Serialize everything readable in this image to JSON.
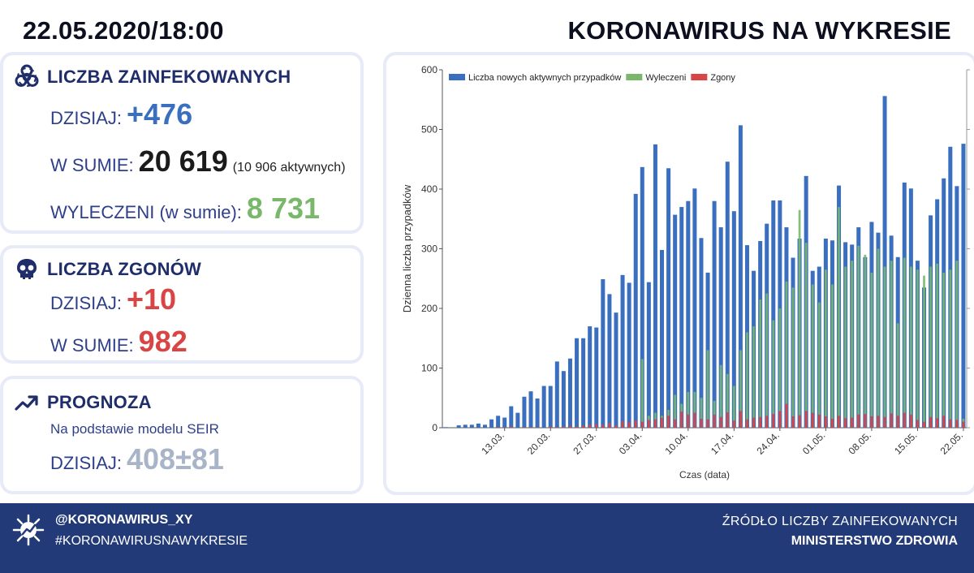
{
  "header": {
    "datetime": "22.05.2020/18:00",
    "title": "KORONAWIRUS NA WYKRESIE"
  },
  "infected": {
    "title": "LICZBA ZAINFEKOWANYCH",
    "today_label": "DZISIAJ:",
    "today_value": "+476",
    "total_label": "W SUMIE:",
    "total_value": "20 619",
    "active_note": "(10 906 aktywnych)",
    "recovered_label": "WYLECZENI (w sumie):",
    "recovered_value": "8 731"
  },
  "deaths": {
    "title": "LICZBA ZGONÓW",
    "today_label": "DZISIAJ:",
    "today_value": "+10",
    "total_label": "W SUMIE:",
    "total_value": "982"
  },
  "forecast": {
    "title": "PROGNOZA",
    "subtitle": "Na podstawie modelu SEIR",
    "today_label": "DZISIAJ:",
    "today_value": "408±81"
  },
  "footer": {
    "handle": "@KORONAWIRUS_XY",
    "hashtag": "#KORONAWIRUSNAWYKRESIE",
    "source_line1": "ŹRÓDŁO LICZBY ZAINFEKOWANYCH",
    "source_line2": "MINISTERSTWO ZDROWIA"
  },
  "colors": {
    "accent_blue": "#3a6fc0",
    "recovered_green": "#79b86a",
    "deaths_red": "#d94545",
    "footer_navy": "#233a79"
  },
  "icons": [
    "biohazard-icon",
    "skull-icon",
    "trend-up-icon",
    "virus-logo-icon"
  ],
  "chart_data": {
    "type": "bar",
    "xlabel": "Czas (data)",
    "ylabel": "Dzienna liczba przypadków",
    "ylim": [
      0,
      600
    ],
    "yticks": [
      0,
      100,
      200,
      300,
      400,
      500,
      600
    ],
    "xlim": [
      "2020-03-04",
      "2020-05-22"
    ],
    "xticks": [
      "13.03.",
      "20.03.",
      "27.03.",
      "03.04.",
      "10.04.",
      "17.04.",
      "24.04.",
      "01.05.",
      "08.05.",
      "15.05.",
      "22.05."
    ],
    "grid": false,
    "legend_position": "top-left",
    "x": [
      "04.03",
      "05.03",
      "06.03",
      "07.03",
      "08.03",
      "09.03",
      "10.03",
      "11.03",
      "12.03",
      "13.03",
      "14.03",
      "15.03",
      "16.03",
      "17.03",
      "18.03",
      "19.03",
      "20.03",
      "21.03",
      "22.03",
      "23.03",
      "24.03",
      "25.03",
      "26.03",
      "27.03",
      "28.03",
      "29.03",
      "30.03",
      "31.03",
      "01.04",
      "02.04",
      "03.04",
      "04.04",
      "05.04",
      "06.04",
      "07.04",
      "08.04",
      "09.04",
      "10.04",
      "11.04",
      "12.04",
      "13.04",
      "14.04",
      "15.04",
      "16.04",
      "17.04",
      "18.04",
      "19.04",
      "20.04",
      "21.04",
      "22.04",
      "23.04",
      "24.04",
      "25.04",
      "26.04",
      "27.04",
      "28.04",
      "29.04",
      "30.04",
      "01.05",
      "02.05",
      "03.05",
      "04.05",
      "05.05",
      "06.05",
      "07.05",
      "08.05",
      "09.05",
      "10.05",
      "11.05",
      "12.05",
      "13.05",
      "14.05",
      "15.05",
      "16.05",
      "17.05",
      "18.05",
      "19.05",
      "20.05",
      "21.05",
      "22.05"
    ],
    "series": [
      {
        "name": "Liczba nowych aktywnych przypadków",
        "color": "#3a6fc0",
        "values": [
          1,
          0,
          4,
          5,
          5,
          7,
          5,
          14,
          20,
          17,
          36,
          25,
          52,
          61,
          49,
          70,
          70,
          111,
          95,
          116,
          150,
          150,
          170,
          168,
          249,
          224,
          193,
          256,
          243,
          392,
          437,
          244,
          475,
          298,
          435,
          357,
          370,
          380,
          401,
          318,
          260,
          380,
          336,
          446,
          363,
          507,
          306,
          263,
          313,
          342,
          381,
          381,
          336,
          285,
          317,
          422,
          263,
          270,
          317,
          314,
          406,
          311,
          307,
          336,
          286,
          345,
          327,
          556,
          322,
          286,
          411,
          401,
          280,
          235,
          356,
          383,
          418,
          471,
          405,
          476
        ]
      },
      {
        "name": "Wyleczeni",
        "color": "#79b86a",
        "values": [
          0,
          0,
          0,
          0,
          0,
          0,
          0,
          0,
          0,
          0,
          0,
          0,
          0,
          0,
          0,
          0,
          0,
          0,
          0,
          0,
          0,
          0,
          0,
          0,
          0,
          0,
          0,
          0,
          0,
          0,
          115,
          20,
          25,
          20,
          30,
          55,
          40,
          60,
          60,
          50,
          130,
          45,
          105,
          90,
          70,
          130,
          160,
          170,
          215,
          225,
          180,
          200,
          245,
          235,
          365,
          310,
          240,
          210,
          265,
          240,
          370,
          270,
          280,
          305,
          290,
          260,
          300,
          270,
          280,
          175,
          285,
          270,
          265,
          255,
          270,
          275,
          260,
          265,
          280,
          15
        ]
      },
      {
        "name": "Zgony",
        "color": "#d94545",
        "values": [
          0,
          0,
          0,
          0,
          0,
          0,
          0,
          0,
          1,
          1,
          2,
          0,
          1,
          1,
          1,
          0,
          2,
          1,
          2,
          3,
          2,
          4,
          5,
          6,
          5,
          8,
          4,
          11,
          9,
          12,
          10,
          13,
          14,
          17,
          20,
          14,
          27,
          22,
          25,
          15,
          14,
          22,
          18,
          26,
          12,
          28,
          14,
          17,
          18,
          20,
          23,
          28,
          40,
          19,
          21,
          28,
          25,
          22,
          19,
          15,
          20,
          16,
          17,
          22,
          23,
          19,
          20,
          18,
          24,
          20,
          25,
          22,
          13,
          10,
          18,
          16,
          20,
          14,
          13,
          10
        ]
      }
    ]
  }
}
